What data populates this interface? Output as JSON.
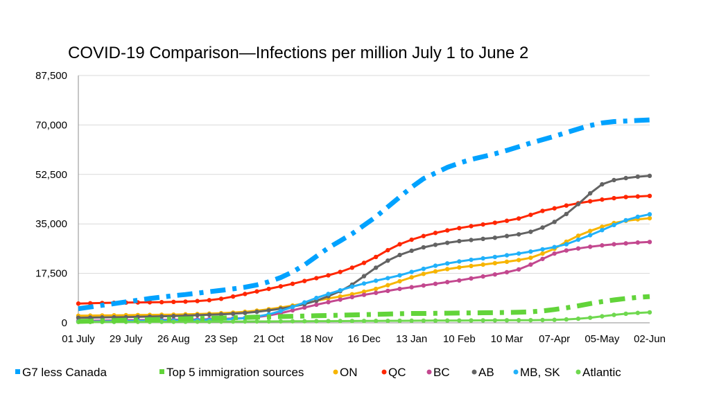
{
  "chart_data": {
    "type": "line",
    "title": "COVID-19 Comparison—Infections per million July 1 to June 2",
    "xlabel": "",
    "ylabel": "",
    "ylim": [
      0,
      87500
    ],
    "yticks": [
      0,
      17500,
      35000,
      52500,
      70000,
      87500
    ],
    "ytick_labels": [
      "0",
      "17,500",
      "35,000",
      "52,500",
      "70,000",
      "87,500"
    ],
    "x_points": 49,
    "xtick_labels": [
      "01 July",
      "29 July",
      "26 Aug",
      "23 Sep",
      "21 Oct",
      "18 Nov",
      "16 Dec",
      "13 Jan",
      "10 Feb",
      "10 Mar",
      "07-Apr",
      "05-May",
      "02-Jun"
    ],
    "xtick_every": 4,
    "grid": true,
    "legend_position": "bottom",
    "series": [
      {
        "name": "G7 less Canada",
        "color": "#00a2ff",
        "style": "dashdot-thick",
        "marker": false,
        "values": [
          5000,
          5600,
          6200,
          6800,
          7400,
          8000,
          8600,
          9100,
          9600,
          10000,
          10500,
          11000,
          11500,
          12000,
          12600,
          13400,
          14500,
          16000,
          18000,
          20500,
          23500,
          26500,
          29000,
          31500,
          34500,
          37500,
          41000,
          44500,
          48000,
          51000,
          53000,
          55000,
          56500,
          57800,
          58800,
          59800,
          61000,
          62300,
          63600,
          64800,
          66000,
          67300,
          68600,
          69800,
          70700,
          71200,
          71400,
          71600,
          71800
        ]
      },
      {
        "name": "Top 5 immigration sources",
        "color": "#62d43a",
        "style": "dashdot-thick",
        "marker": false,
        "values": [
          500,
          600,
          700,
          800,
          900,
          1000,
          1100,
          1200,
          1300,
          1400,
          1500,
          1600,
          1700,
          1800,
          1900,
          2000,
          2100,
          2200,
          2300,
          2400,
          2500,
          2600,
          2700,
          2800,
          2900,
          3000,
          3100,
          3200,
          3300,
          3300,
          3350,
          3400,
          3450,
          3500,
          3550,
          3600,
          3650,
          3750,
          3900,
          4200,
          4700,
          5300,
          6000,
          6800,
          7500,
          8100,
          8600,
          9000,
          9300
        ]
      },
      {
        "name": "ON",
        "color": "#f7b500",
        "style": "solid",
        "marker": true,
        "values": [
          2500,
          2550,
          2600,
          2650,
          2700,
          2750,
          2800,
          2850,
          2900,
          3000,
          3100,
          3250,
          3400,
          3600,
          3900,
          4300,
          4800,
          5400,
          6100,
          6900,
          7800,
          8600,
          9300,
          10100,
          11000,
          12000,
          13300,
          14700,
          16100,
          17300,
          18200,
          19000,
          19600,
          20100,
          20600,
          21100,
          21600,
          22200,
          23000,
          24500,
          26200,
          28700,
          30800,
          32500,
          34000,
          35300,
          36100,
          36600,
          37000
        ]
      },
      {
        "name": "QC",
        "color": "#ff2600",
        "style": "solid",
        "marker": true,
        "values": [
          6800,
          6900,
          7000,
          7100,
          7150,
          7200,
          7250,
          7300,
          7400,
          7500,
          7700,
          8000,
          8500,
          9300,
          10200,
          11100,
          12000,
          12900,
          13800,
          14800,
          15800,
          16800,
          18000,
          19500,
          21200,
          23300,
          25700,
          27800,
          29400,
          30700,
          31800,
          32700,
          33500,
          34200,
          34800,
          35400,
          36100,
          36900,
          38200,
          39600,
          40500,
          41500,
          42300,
          43000,
          43600,
          44100,
          44500,
          44700,
          44900
        ]
      },
      {
        "name": "BC",
        "color": "#c3488f",
        "style": "solid",
        "marker": true,
        "values": [
          700,
          750,
          800,
          850,
          900,
          950,
          1000,
          1050,
          1100,
          1150,
          1200,
          1300,
          1400,
          1550,
          1700,
          2000,
          2600,
          3400,
          4400,
          5400,
          6400,
          7300,
          8200,
          9100,
          9900,
          10600,
          11300,
          12000,
          12600,
          13200,
          13800,
          14400,
          15000,
          15700,
          16400,
          17100,
          17900,
          18900,
          20600,
          22600,
          24500,
          25600,
          26300,
          26900,
          27400,
          27800,
          28100,
          28400,
          28600
        ]
      },
      {
        "name": "AB",
        "color": "#636363",
        "style": "solid",
        "marker": true,
        "values": [
          1800,
          1850,
          1900,
          1950,
          2000,
          2100,
          2200,
          2300,
          2400,
          2550,
          2700,
          2850,
          3000,
          3200,
          3500,
          3900,
          4400,
          5000,
          5700,
          6600,
          7800,
          9400,
          11200,
          13500,
          16500,
          19500,
          22000,
          24000,
          25500,
          26700,
          27600,
          28300,
          28900,
          29300,
          29700,
          30100,
          30700,
          31300,
          32200,
          33700,
          35700,
          38500,
          42000,
          45800,
          49000,
          50500,
          51200,
          51700,
          52000
        ]
      },
      {
        "name": "MB, SK",
        "color": "#21b1fa",
        "style": "solid",
        "marker": true,
        "values": [
          400,
          450,
          500,
          550,
          600,
          650,
          700,
          750,
          800,
          850,
          900,
          1000,
          1150,
          1350,
          1650,
          2200,
          3000,
          4200,
          5600,
          7200,
          8800,
          10200,
          11500,
          12800,
          13900,
          14900,
          15800,
          16800,
          18000,
          19100,
          20200,
          21000,
          21700,
          22300,
          22800,
          23300,
          23900,
          24500,
          25200,
          26000,
          26800,
          27800,
          29400,
          31000,
          32800,
          34600,
          36300,
          37500,
          38400
        ]
      },
      {
        "name": "Atlantic",
        "color": "#6fd84f",
        "style": "solid",
        "marker": true,
        "values": [
          300,
          300,
          310,
          320,
          330,
          340,
          350,
          360,
          370,
          380,
          390,
          400,
          420,
          440,
          460,
          480,
          500,
          520,
          540,
          560,
          580,
          600,
          620,
          640,
          660,
          680,
          700,
          720,
          740,
          760,
          780,
          800,
          820,
          840,
          860,
          880,
          900,
          920,
          940,
          980,
          1050,
          1200,
          1450,
          1800,
          2300,
          2800,
          3200,
          3500,
          3700
        ]
      }
    ]
  }
}
